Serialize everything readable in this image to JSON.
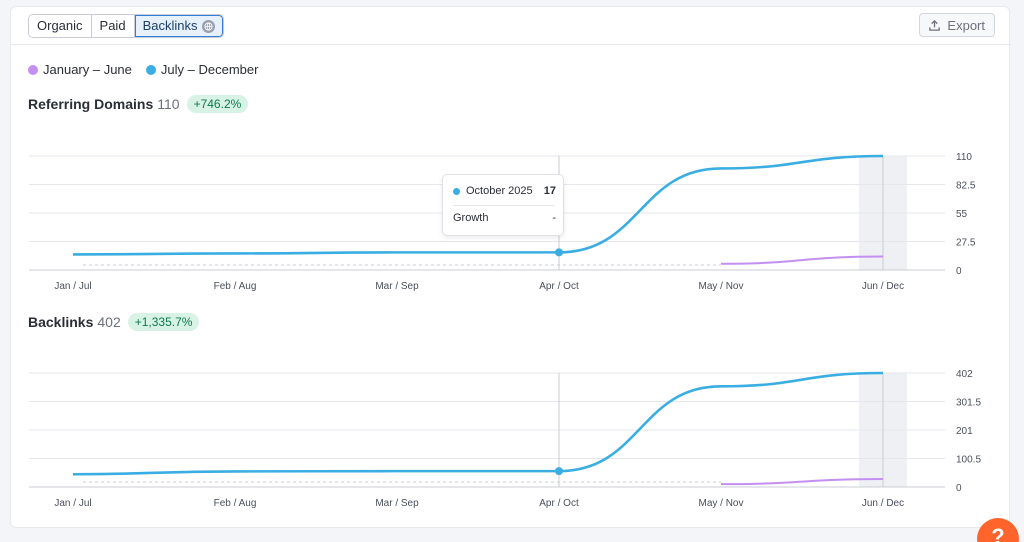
{
  "tabs": [
    {
      "label": "Organic"
    },
    {
      "label": "Paid"
    },
    {
      "label": "Backlinks"
    }
  ],
  "export_label": "Export",
  "legend": [
    {
      "label": "January – June",
      "color": "#c38ff0"
    },
    {
      "label": "July – December",
      "color": "#3aaee2"
    }
  ],
  "tooltip": {
    "month": "October 2025",
    "value": "17",
    "growth_label": "Growth",
    "growth_value": "-"
  },
  "help_label": "?",
  "chart_data": [
    {
      "type": "line",
      "title": "Referring Domains",
      "total": "110",
      "change": "+746.2%",
      "x_categories": [
        "Jan / Jul",
        "Feb / Aug",
        "Mar / Sep",
        "Apr / Oct",
        "May / Nov",
        "Jun / Dec"
      ],
      "y_ticks": [
        "110",
        "82.5",
        "55",
        "27.5",
        "0"
      ],
      "ylim": [
        0,
        110
      ],
      "grid": true,
      "series": [
        {
          "name": "January – June",
          "color": "#c38ff0",
          "x": [
            "May / Nov",
            "Jun / Dec"
          ],
          "values": [
            6,
            13
          ]
        },
        {
          "name": "July – December",
          "color": "#3aaee2",
          "x": [
            "Jan / Jul",
            "Feb / Aug",
            "Mar / Sep",
            "Apr / Oct",
            "May / Nov",
            "Jun / Dec"
          ],
          "values": [
            15,
            16,
            17,
            17,
            98,
            110
          ]
        }
      ]
    },
    {
      "type": "line",
      "title": "Backlinks",
      "total": "402",
      "change": "+1,335.7%",
      "x_categories": [
        "Jan / Jul",
        "Feb / Aug",
        "Mar / Sep",
        "Apr / Oct",
        "May / Nov",
        "Jun / Dec"
      ],
      "y_ticks": [
        "402",
        "301.5",
        "201",
        "100.5",
        "0"
      ],
      "ylim": [
        0,
        402
      ],
      "grid": true,
      "series": [
        {
          "name": "January – June",
          "color": "#c38ff0",
          "x": [
            "May / Nov",
            "Jun / Dec"
          ],
          "values": [
            10,
            28
          ]
        },
        {
          "name": "July – December",
          "color": "#3aaee2",
          "x": [
            "Jan / Jul",
            "Feb / Aug",
            "Mar / Sep",
            "Apr / Oct",
            "May / Nov",
            "Jun / Dec"
          ],
          "values": [
            45,
            55,
            56,
            56,
            355,
            402
          ]
        }
      ]
    }
  ]
}
